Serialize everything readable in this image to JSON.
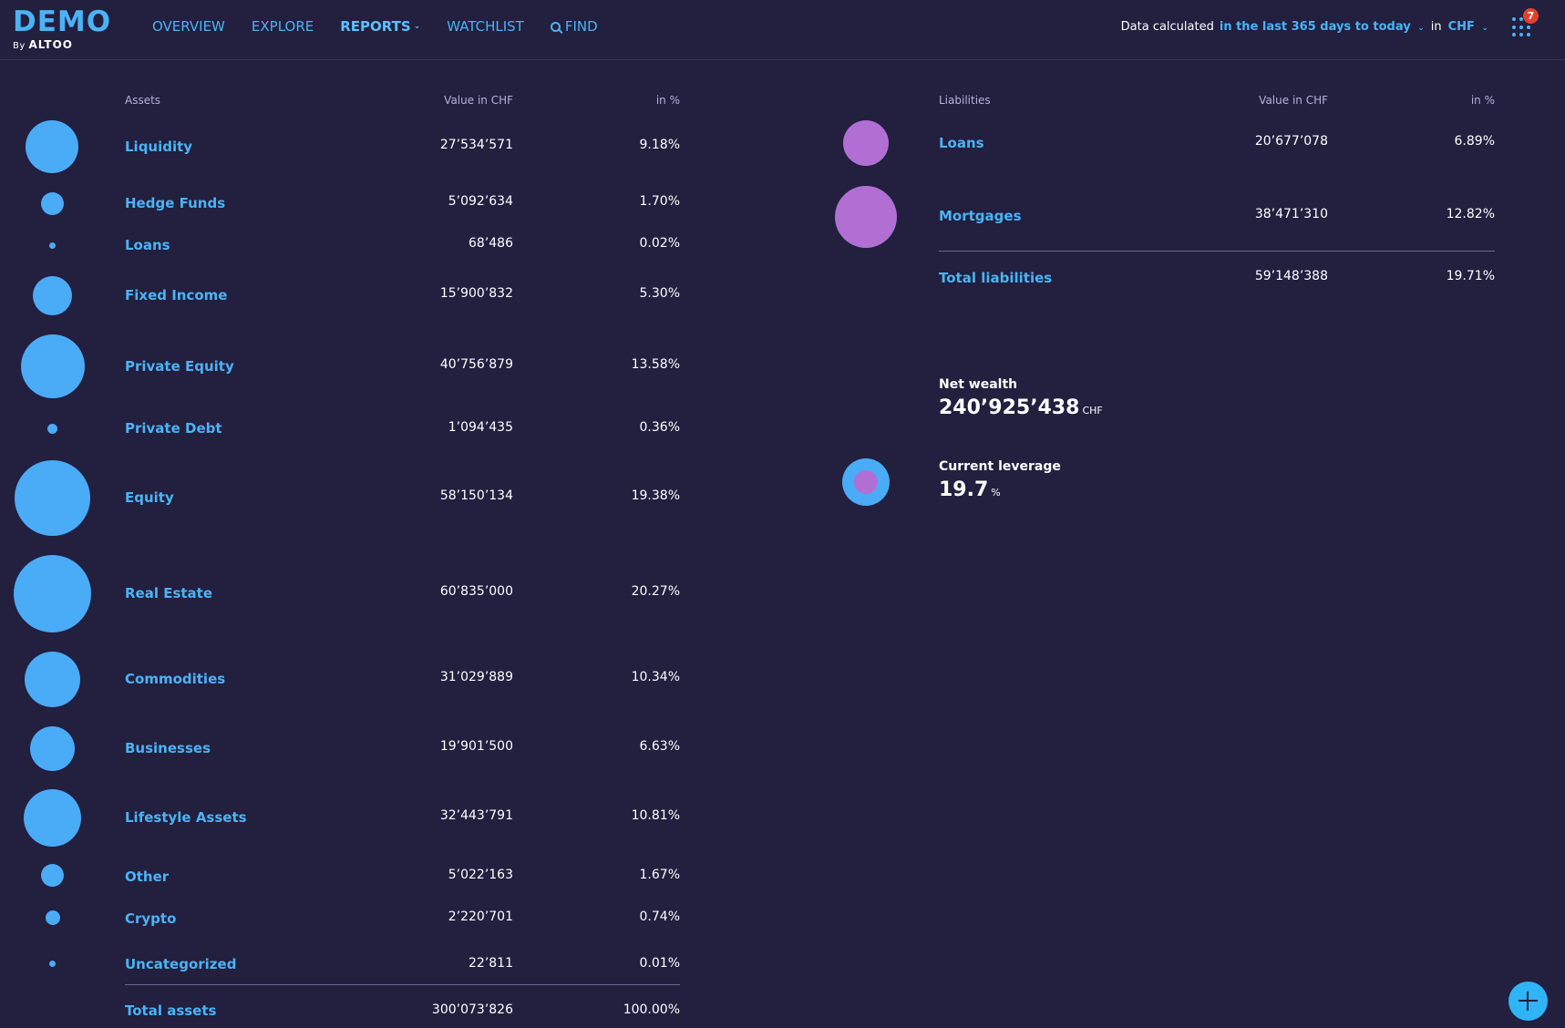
{
  "logo": {
    "main": "DEMO",
    "by": "By",
    "brand": "ALTOO"
  },
  "nav": {
    "overview": "OVERVIEW",
    "explore": "EXPLORE",
    "reports": "REPORTS",
    "watchlist": "WATCHLIST",
    "find": "FIND"
  },
  "calc": {
    "label": "Data calculated",
    "period": "in the last 365 days to today",
    "in": "in",
    "currency": "CHF"
  },
  "notifications": {
    "count": "7"
  },
  "assets": {
    "headers": {
      "name": "Assets",
      "value": "Value in CHF",
      "pct": "in %"
    },
    "rows": [
      {
        "name": "Liquidity",
        "value": "27’534’571",
        "pct": "9.18%"
      },
      {
        "name": "Hedge Funds",
        "value": "5’092’634",
        "pct": "1.70%"
      },
      {
        "name": "Loans",
        "value": "68’486",
        "pct": "0.02%"
      },
      {
        "name": "Fixed Income",
        "value": "15’900’832",
        "pct": "5.30%"
      },
      {
        "name": "Private Equity",
        "value": "40’756’879",
        "pct": "13.58%"
      },
      {
        "name": "Private Debt",
        "value": "1’094’435",
        "pct": "0.36%"
      },
      {
        "name": "Equity",
        "value": "58’150’134",
        "pct": "19.38%"
      },
      {
        "name": "Real Estate",
        "value": "60’835’000",
        "pct": "20.27%"
      },
      {
        "name": "Commodities",
        "value": "31’029’889",
        "pct": "10.34%"
      },
      {
        "name": "Businesses",
        "value": "19’901’500",
        "pct": "6.63%"
      },
      {
        "name": "Lifestyle Assets",
        "value": "32’443’791",
        "pct": "10.81%"
      },
      {
        "name": "Other",
        "value": "5’022’163",
        "pct": "1.67%"
      },
      {
        "name": "Crypto",
        "value": "2’220’701",
        "pct": "0.74%"
      },
      {
        "name": "Uncategorized",
        "value": "22’811",
        "pct": "0.01%"
      }
    ],
    "total": {
      "name": "Total assets",
      "value": "300’073’826",
      "pct": "100.00%"
    }
  },
  "liabilities": {
    "headers": {
      "name": "Liabilities",
      "value": "Value in CHF",
      "pct": "in %"
    },
    "rows": [
      {
        "name": "Loans",
        "value": "20’677’078",
        "pct": "6.89%"
      },
      {
        "name": "Mortgages",
        "value": "38’471’310",
        "pct": "12.82%"
      }
    ],
    "total": {
      "name": "Total liabilities",
      "value": "59’148’388",
      "pct": "19.71%"
    }
  },
  "summary": {
    "net_wealth_label": "Net wealth",
    "net_wealth_value": "240’925’438",
    "net_wealth_unit": "CHF",
    "leverage_label": "Current leverage",
    "leverage_value": "19.7",
    "leverage_unit": "%"
  },
  "colors": {
    "background": "#221f3f",
    "accent": "#4bb3f5",
    "asset_bubble": "#4aabf7",
    "liability_bubble": "#b16fd3",
    "badge": "#e5402f"
  }
}
